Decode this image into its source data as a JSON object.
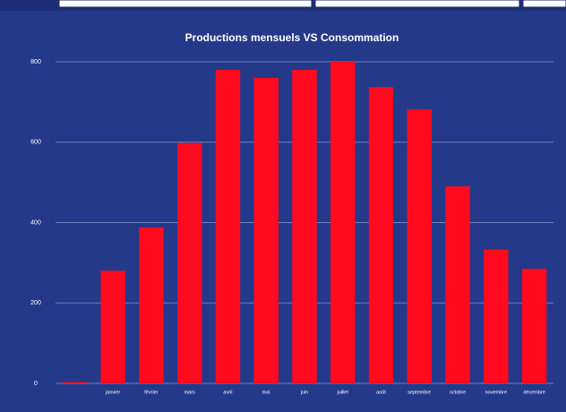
{
  "chart_data": {
    "type": "bar",
    "title": "Productions mensuels VS Consommation",
    "categories": [
      null,
      "janvier",
      "février",
      "mars",
      "avril",
      "mai",
      "juin",
      "juillet",
      "août",
      "septembre",
      "octobre",
      "novembre",
      "décembre"
    ],
    "values": [
      3,
      280,
      388,
      598,
      780,
      760,
      780,
      800,
      737,
      682,
      490,
      333,
      285
    ],
    "color": "#ff0a1e",
    "ylim": [
      0,
      800
    ],
    "yticks": [
      0,
      200,
      400,
      600,
      800
    ],
    "grid": true
  }
}
